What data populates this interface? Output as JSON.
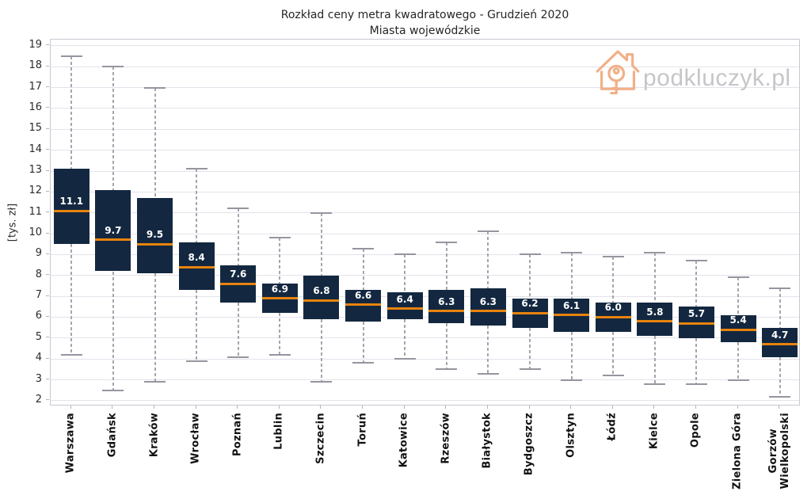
{
  "title": {
    "line1": "Rozkład ceny metra kwadratowego - Grudzień 2020",
    "line2": "Miasta wojewódzkie"
  },
  "brand": {
    "text": "podkluczyk.pl",
    "icon": "house-with-key-logo",
    "icon_color": "#f1b089",
    "text_color": "#c6c6c8"
  },
  "chart_data": {
    "type": "boxplot",
    "title": "Rozkład ceny metra kwadratowego - Grudzień 2020",
    "subtitle": "Miasta wojewódzkie",
    "xlabel": "",
    "ylabel": "[tys. zł]",
    "ylim": [
      1.73,
      19.3
    ],
    "yticks": [
      2,
      3,
      4,
      5,
      6,
      7,
      8,
      9,
      10,
      11,
      12,
      13,
      14,
      15,
      16,
      17,
      18,
      19
    ],
    "grid": "horizontal",
    "legend": "none",
    "colors": {
      "box_fill": "#132840",
      "median_line": "#e8830e",
      "whisker": "#a8a4ae",
      "cap": "#98949f",
      "gridline": "#e4e2ea",
      "median_label_text": "#ffffff"
    },
    "series": [
      {
        "name": "Warszawa",
        "whisker_low": 4.2,
        "q1": 9.5,
        "median": 11.1,
        "q3": 13.1,
        "whisker_high": 18.5
      },
      {
        "name": "Gdańsk",
        "whisker_low": 2.5,
        "q1": 8.2,
        "median": 9.7,
        "q3": 12.1,
        "whisker_high": 18.0
      },
      {
        "name": "Kraków",
        "whisker_low": 2.9,
        "q1": 8.1,
        "median": 9.5,
        "q3": 11.7,
        "whisker_high": 17.0
      },
      {
        "name": "Wrocław",
        "whisker_low": 3.9,
        "q1": 7.3,
        "median": 8.4,
        "q3": 9.6,
        "whisker_high": 13.1
      },
      {
        "name": "Poznań",
        "whisker_low": 4.1,
        "q1": 6.7,
        "median": 7.6,
        "q3": 8.5,
        "whisker_high": 11.2
      },
      {
        "name": "Lublin",
        "whisker_low": 4.2,
        "q1": 6.2,
        "median": 6.9,
        "q3": 7.6,
        "whisker_high": 9.8
      },
      {
        "name": "Szczecin",
        "whisker_low": 2.9,
        "q1": 5.9,
        "median": 6.8,
        "q3": 8.0,
        "whisker_high": 11.0
      },
      {
        "name": "Toruń",
        "whisker_low": 3.8,
        "q1": 5.8,
        "median": 6.6,
        "q3": 7.3,
        "whisker_high": 9.3
      },
      {
        "name": "Katowice",
        "whisker_low": 4.0,
        "q1": 5.9,
        "median": 6.4,
        "q3": 7.2,
        "whisker_high": 9.0
      },
      {
        "name": "Rzeszów",
        "whisker_low": 3.5,
        "q1": 5.7,
        "median": 6.3,
        "q3": 7.3,
        "whisker_high": 9.6
      },
      {
        "name": "Białystok",
        "whisker_low": 3.3,
        "q1": 5.6,
        "median": 6.3,
        "q3": 7.4,
        "whisker_high": 10.1
      },
      {
        "name": "Bydgoszcz",
        "whisker_low": 3.5,
        "q1": 5.5,
        "median": 6.2,
        "q3": 6.9,
        "whisker_high": 9.0
      },
      {
        "name": "Olsztyn",
        "whisker_low": 3.0,
        "q1": 5.3,
        "median": 6.1,
        "q3": 6.9,
        "whisker_high": 9.1
      },
      {
        "name": "Łódź",
        "whisker_low": 3.2,
        "q1": 5.3,
        "median": 6.0,
        "q3": 6.7,
        "whisker_high": 8.9
      },
      {
        "name": "Kielce",
        "whisker_low": 2.8,
        "q1": 5.1,
        "median": 5.8,
        "q3": 6.7,
        "whisker_high": 9.1
      },
      {
        "name": "Opole",
        "whisker_low": 2.8,
        "q1": 5.0,
        "median": 5.7,
        "q3": 6.5,
        "whisker_high": 8.7
      },
      {
        "name": "Zielona Góra",
        "whisker_low": 3.0,
        "q1": 4.8,
        "median": 5.4,
        "q3": 6.1,
        "whisker_high": 7.9
      },
      {
        "name": "Gorzów\nWielkopolski",
        "whisker_low": 2.2,
        "q1": 4.1,
        "median": 4.7,
        "q3": 5.5,
        "whisker_high": 7.4
      }
    ]
  }
}
